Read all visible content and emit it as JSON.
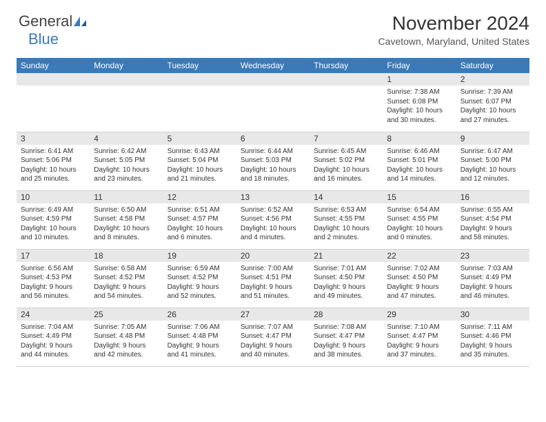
{
  "logo": {
    "general": "General",
    "blue": "Blue"
  },
  "title": "November 2024",
  "location": "Cavetown, Maryland, United States",
  "colors": {
    "header_bg": "#3a7ab8",
    "header_text": "#ffffff",
    "daynum_bg": "#e8e8e8",
    "border": "#d0d0d0",
    "text": "#333333"
  },
  "weekdays": [
    "Sunday",
    "Monday",
    "Tuesday",
    "Wednesday",
    "Thursday",
    "Friday",
    "Saturday"
  ],
  "weeks": [
    [
      {
        "n": "",
        "sr": "",
        "ss": "",
        "dl": ""
      },
      {
        "n": "",
        "sr": "",
        "ss": "",
        "dl": ""
      },
      {
        "n": "",
        "sr": "",
        "ss": "",
        "dl": ""
      },
      {
        "n": "",
        "sr": "",
        "ss": "",
        "dl": ""
      },
      {
        "n": "",
        "sr": "",
        "ss": "",
        "dl": ""
      },
      {
        "n": "1",
        "sr": "Sunrise: 7:38 AM",
        "ss": "Sunset: 6:08 PM",
        "dl": "Daylight: 10 hours and 30 minutes."
      },
      {
        "n": "2",
        "sr": "Sunrise: 7:39 AM",
        "ss": "Sunset: 6:07 PM",
        "dl": "Daylight: 10 hours and 27 minutes."
      }
    ],
    [
      {
        "n": "3",
        "sr": "Sunrise: 6:41 AM",
        "ss": "Sunset: 5:06 PM",
        "dl": "Daylight: 10 hours and 25 minutes."
      },
      {
        "n": "4",
        "sr": "Sunrise: 6:42 AM",
        "ss": "Sunset: 5:05 PM",
        "dl": "Daylight: 10 hours and 23 minutes."
      },
      {
        "n": "5",
        "sr": "Sunrise: 6:43 AM",
        "ss": "Sunset: 5:04 PM",
        "dl": "Daylight: 10 hours and 21 minutes."
      },
      {
        "n": "6",
        "sr": "Sunrise: 6:44 AM",
        "ss": "Sunset: 5:03 PM",
        "dl": "Daylight: 10 hours and 18 minutes."
      },
      {
        "n": "7",
        "sr": "Sunrise: 6:45 AM",
        "ss": "Sunset: 5:02 PM",
        "dl": "Daylight: 10 hours and 16 minutes."
      },
      {
        "n": "8",
        "sr": "Sunrise: 6:46 AM",
        "ss": "Sunset: 5:01 PM",
        "dl": "Daylight: 10 hours and 14 minutes."
      },
      {
        "n": "9",
        "sr": "Sunrise: 6:47 AM",
        "ss": "Sunset: 5:00 PM",
        "dl": "Daylight: 10 hours and 12 minutes."
      }
    ],
    [
      {
        "n": "10",
        "sr": "Sunrise: 6:49 AM",
        "ss": "Sunset: 4:59 PM",
        "dl": "Daylight: 10 hours and 10 minutes."
      },
      {
        "n": "11",
        "sr": "Sunrise: 6:50 AM",
        "ss": "Sunset: 4:58 PM",
        "dl": "Daylight: 10 hours and 8 minutes."
      },
      {
        "n": "12",
        "sr": "Sunrise: 6:51 AM",
        "ss": "Sunset: 4:57 PM",
        "dl": "Daylight: 10 hours and 6 minutes."
      },
      {
        "n": "13",
        "sr": "Sunrise: 6:52 AM",
        "ss": "Sunset: 4:56 PM",
        "dl": "Daylight: 10 hours and 4 minutes."
      },
      {
        "n": "14",
        "sr": "Sunrise: 6:53 AM",
        "ss": "Sunset: 4:55 PM",
        "dl": "Daylight: 10 hours and 2 minutes."
      },
      {
        "n": "15",
        "sr": "Sunrise: 6:54 AM",
        "ss": "Sunset: 4:55 PM",
        "dl": "Daylight: 10 hours and 0 minutes."
      },
      {
        "n": "16",
        "sr": "Sunrise: 6:55 AM",
        "ss": "Sunset: 4:54 PM",
        "dl": "Daylight: 9 hours and 58 minutes."
      }
    ],
    [
      {
        "n": "17",
        "sr": "Sunrise: 6:56 AM",
        "ss": "Sunset: 4:53 PM",
        "dl": "Daylight: 9 hours and 56 minutes."
      },
      {
        "n": "18",
        "sr": "Sunrise: 6:58 AM",
        "ss": "Sunset: 4:52 PM",
        "dl": "Daylight: 9 hours and 54 minutes."
      },
      {
        "n": "19",
        "sr": "Sunrise: 6:59 AM",
        "ss": "Sunset: 4:52 PM",
        "dl": "Daylight: 9 hours and 52 minutes."
      },
      {
        "n": "20",
        "sr": "Sunrise: 7:00 AM",
        "ss": "Sunset: 4:51 PM",
        "dl": "Daylight: 9 hours and 51 minutes."
      },
      {
        "n": "21",
        "sr": "Sunrise: 7:01 AM",
        "ss": "Sunset: 4:50 PM",
        "dl": "Daylight: 9 hours and 49 minutes."
      },
      {
        "n": "22",
        "sr": "Sunrise: 7:02 AM",
        "ss": "Sunset: 4:50 PM",
        "dl": "Daylight: 9 hours and 47 minutes."
      },
      {
        "n": "23",
        "sr": "Sunrise: 7:03 AM",
        "ss": "Sunset: 4:49 PM",
        "dl": "Daylight: 9 hours and 46 minutes."
      }
    ],
    [
      {
        "n": "24",
        "sr": "Sunrise: 7:04 AM",
        "ss": "Sunset: 4:49 PM",
        "dl": "Daylight: 9 hours and 44 minutes."
      },
      {
        "n": "25",
        "sr": "Sunrise: 7:05 AM",
        "ss": "Sunset: 4:48 PM",
        "dl": "Daylight: 9 hours and 42 minutes."
      },
      {
        "n": "26",
        "sr": "Sunrise: 7:06 AM",
        "ss": "Sunset: 4:48 PM",
        "dl": "Daylight: 9 hours and 41 minutes."
      },
      {
        "n": "27",
        "sr": "Sunrise: 7:07 AM",
        "ss": "Sunset: 4:47 PM",
        "dl": "Daylight: 9 hours and 40 minutes."
      },
      {
        "n": "28",
        "sr": "Sunrise: 7:08 AM",
        "ss": "Sunset: 4:47 PM",
        "dl": "Daylight: 9 hours and 38 minutes."
      },
      {
        "n": "29",
        "sr": "Sunrise: 7:10 AM",
        "ss": "Sunset: 4:47 PM",
        "dl": "Daylight: 9 hours and 37 minutes."
      },
      {
        "n": "30",
        "sr": "Sunrise: 7:11 AM",
        "ss": "Sunset: 4:46 PM",
        "dl": "Daylight: 9 hours and 35 minutes."
      }
    ]
  ]
}
